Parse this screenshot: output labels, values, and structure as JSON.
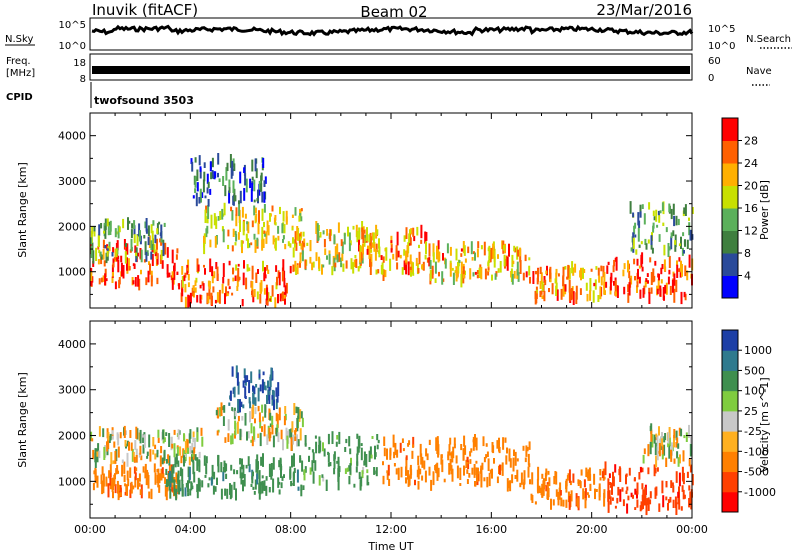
{
  "header": {
    "station": "Inuvik (fitACF)",
    "beam": "Beam 02",
    "date": "23/Mar/2016"
  },
  "top_panels": {
    "nsky_label": "N.Sky",
    "nsky_tick_hi": "10^5",
    "nsky_tick_lo": "10^0",
    "nsearch_label": "N.Search",
    "nsearch_tick_hi": "10^5",
    "nsearch_tick_lo": "10^0",
    "freq_label_1": "Freq.",
    "freq_label_2": "[MHz]",
    "freq_tick_hi": "18",
    "freq_tick_lo": "8",
    "nave_label": "Nave",
    "nave_tick_hi": "60",
    "nave_tick_lo": "0",
    "cpid_label": "CPID",
    "cpid_value": "twofsound 3503"
  },
  "colors": {
    "power": [
      "#0000ff",
      "#2a4a9a",
      "#3f7f3f",
      "#5bb05b",
      "#c8e000",
      "#ffb000",
      "#ff6000",
      "#ff0000"
    ],
    "velocity": [
      "#1d3fa6",
      "#2f7a8e",
      "#3f8f4f",
      "#7fcc3f",
      "#c8c8c8",
      "#ffb020",
      "#ff8000",
      "#ff4000",
      "#ff0000"
    ]
  },
  "chart_data": [
    {
      "type": "heatmap",
      "title": "",
      "ylabel": "Slant Range [km]",
      "xlabel": "",
      "xlim": [
        "00:00",
        "24:00"
      ],
      "ylim": [
        200,
        4500
      ],
      "y_ticks": [
        1000,
        2000,
        3000,
        4000
      ],
      "colorbar": {
        "label": "Power [dB]",
        "ticks": [
          4,
          8,
          12,
          16,
          20,
          24,
          28
        ],
        "range": [
          0,
          32
        ]
      },
      "blobs": [
        {
          "t0": 0.0,
          "t1": 3.5,
          "r0": 700,
          "r1": 1700,
          "v": 28
        },
        {
          "t0": 0.0,
          "t1": 3.0,
          "r0": 1300,
          "r1": 2100,
          "v": 12
        },
        {
          "t0": 3.5,
          "t1": 8.0,
          "r0": 300,
          "r1": 1200,
          "v": 26
        },
        {
          "t0": 4.5,
          "t1": 8.5,
          "r0": 1500,
          "r1": 2400,
          "v": 20
        },
        {
          "t0": 4.0,
          "t1": 7.0,
          "r0": 2500,
          "r1": 3500,
          "v": 8
        },
        {
          "t0": 8.0,
          "t1": 11.5,
          "r0": 1000,
          "r1": 2000,
          "v": 20
        },
        {
          "t0": 10.5,
          "t1": 13.5,
          "r0": 900,
          "r1": 1900,
          "v": 24
        },
        {
          "t0": 13.5,
          "t1": 17.5,
          "r0": 800,
          "r1": 1600,
          "v": 22
        },
        {
          "t0": 17.5,
          "t1": 20.5,
          "r0": 400,
          "r1": 1100,
          "v": 24
        },
        {
          "t0": 20.5,
          "t1": 24.0,
          "r0": 400,
          "r1": 1300,
          "v": 28
        },
        {
          "t0": 21.5,
          "t1": 24.0,
          "r0": 1400,
          "r1": 2500,
          "v": 12
        }
      ]
    },
    {
      "type": "heatmap",
      "title": "",
      "ylabel": "Slant Range [km]",
      "xlabel": "Time UT",
      "xlim": [
        "00:00",
        "24:00"
      ],
      "ylim": [
        200,
        4500
      ],
      "x_ticks": [
        "00:00",
        "04:00",
        "08:00",
        "12:00",
        "16:00",
        "20:00",
        "00:00"
      ],
      "y_ticks": [
        1000,
        2000,
        3000,
        4000
      ],
      "colorbar": {
        "label": "Velocity [m s^-1]",
        "ticks": [
          1000,
          500,
          100,
          25,
          -25,
          -100,
          -500,
          -1000
        ]
      },
      "blobs": [
        {
          "t0": 0.0,
          "t1": 3.5,
          "r0": 700,
          "r1": 1300,
          "v": -200
        },
        {
          "t0": 0.0,
          "t1": 4.5,
          "r0": 1400,
          "r1": 2100,
          "v": 0
        },
        {
          "t0": 3.0,
          "t1": 8.5,
          "r0": 700,
          "r1": 1500,
          "v": 200
        },
        {
          "t0": 5.0,
          "t1": 8.5,
          "r0": 1800,
          "r1": 2600,
          "v": 0
        },
        {
          "t0": 5.5,
          "t1": 7.5,
          "r0": 2600,
          "r1": 3400,
          "v": 600
        },
        {
          "t0": 8.5,
          "t1": 11.5,
          "r0": 900,
          "r1": 2000,
          "v": 150
        },
        {
          "t0": 11.5,
          "t1": 17.5,
          "r0": 900,
          "r1": 1900,
          "v": -200
        },
        {
          "t0": 17.5,
          "t1": 20.5,
          "r0": 500,
          "r1": 1200,
          "v": -200
        },
        {
          "t0": 20.5,
          "t1": 24.0,
          "r0": 400,
          "r1": 1300,
          "v": -600
        },
        {
          "t0": 22.0,
          "t1": 24.0,
          "r0": 1400,
          "r1": 2200,
          "v": 0
        }
      ]
    }
  ]
}
